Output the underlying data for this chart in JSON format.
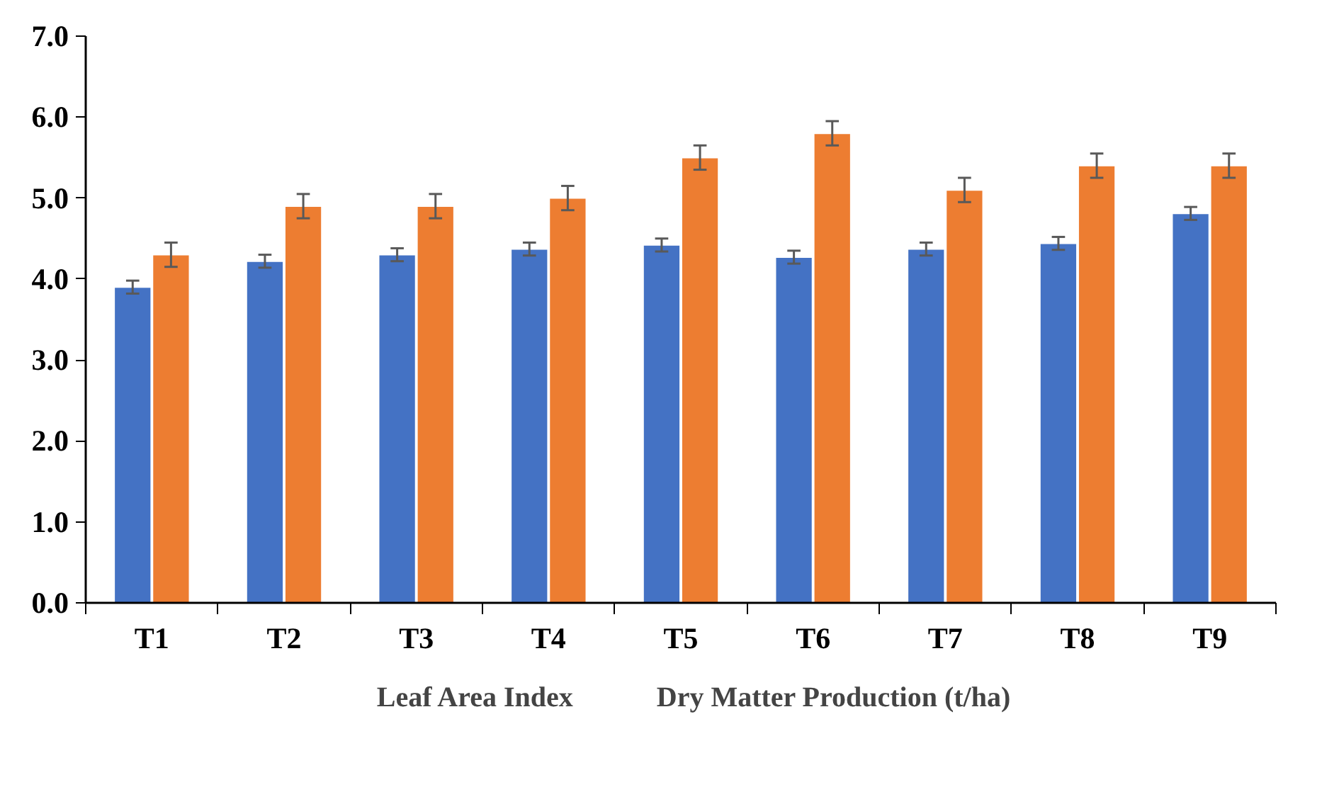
{
  "chart_data": {
    "type": "bar",
    "categories": [
      "T1",
      "T2",
      "T3",
      "T4",
      "T5",
      "T6",
      "T7",
      "T8",
      "T9"
    ],
    "series": [
      {
        "name": "Leaf Area Index",
        "color": "#4472c4",
        "values": [
          3.9,
          4.22,
          4.3,
          4.37,
          4.42,
          4.27,
          4.37,
          4.44,
          4.81
        ],
        "errors": [
          0.08,
          0.08,
          0.08,
          0.08,
          0.08,
          0.08,
          0.08,
          0.08,
          0.08
        ]
      },
      {
        "name": "Dry Matter Production (t/ha)",
        "color": "#ed7d31",
        "values": [
          4.3,
          4.9,
          4.9,
          5.0,
          5.5,
          5.8,
          5.1,
          5.4,
          5.4
        ],
        "errors": [
          0.15,
          0.15,
          0.15,
          0.15,
          0.15,
          0.15,
          0.15,
          0.15,
          0.15
        ]
      }
    ],
    "ylim": [
      0,
      7
    ],
    "yticks": [
      {
        "value": 0,
        "label": "0.0"
      },
      {
        "value": 1,
        "label": "1.0"
      },
      {
        "value": 2,
        "label": "2.0"
      },
      {
        "value": 3,
        "label": "3.0"
      },
      {
        "value": 4,
        "label": "4.0"
      },
      {
        "value": 5,
        "label": "5.0"
      },
      {
        "value": 6,
        "label": "6.0"
      },
      {
        "value": 7,
        "label": "7.0"
      }
    ],
    "grid": false,
    "legend": "bottom"
  }
}
